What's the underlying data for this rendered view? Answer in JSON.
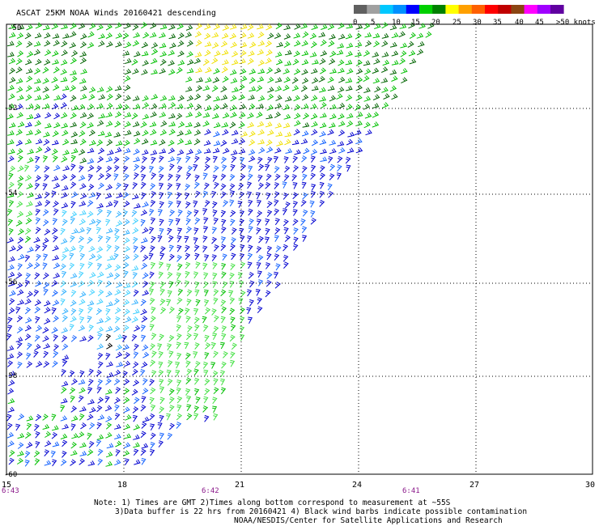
{
  "title": "ASCAT 25KM NOAA Winds 20160421 descending",
  "legend": {
    "labels": [
      "0",
      "5",
      "10",
      "15",
      "20",
      "25",
      "30",
      "35",
      "40",
      "45",
      ">50 knots"
    ],
    "colors": [
      "#606060",
      "#a0a0a0",
      "#00c8ff",
      "#0090ff",
      "#0000ff",
      "#00d000",
      "#008000",
      "#ffff00",
      "#ffa000",
      "#ff6000",
      "#ff0000",
      "#c00000",
      "#8b4513",
      "#ff00ff",
      "#a000ff",
      "#6000a0"
    ]
  },
  "lat_labels": [
    "-50",
    "-52",
    "-54",
    "-56",
    "-58",
    "-60"
  ],
  "lon_labels": [
    "15",
    "18",
    "21",
    "24",
    "27",
    "30"
  ],
  "time_labels": [
    "6:43",
    "6:42",
    "6:41"
  ],
  "notes": [
    "Note: 1) Times are GMT 2)Times along bottom correspond to measurement at ~55S",
    "3)Data buffer is 22 hrs from 20160421 4) Black wind barbs indicate possible contamination",
    "NOAA/NESDIS/Center for Satellite Applications and Research"
  ],
  "barb_colors": {
    "dark_green": "#006400",
    "green": "#00c000",
    "light_green": "#40e040",
    "yellow": "#f0e000",
    "blue": "#0000d0",
    "mid_blue": "#1060ff",
    "light_blue": "#30b0ff",
    "cyan": "#40d0ff",
    "black": "#000000"
  }
}
